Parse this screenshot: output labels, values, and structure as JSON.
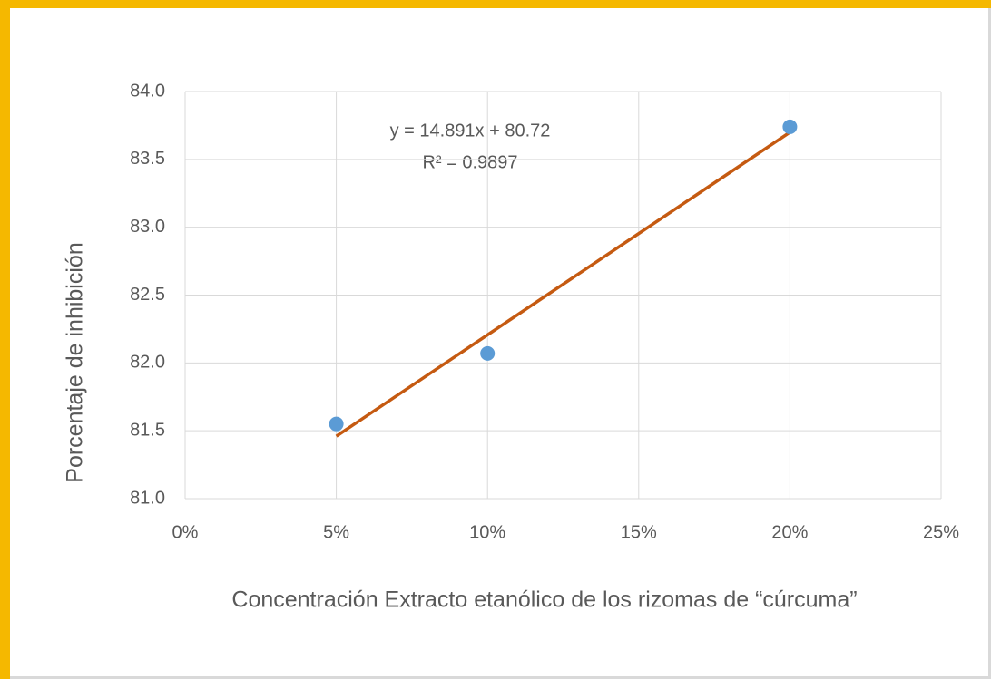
{
  "chart_data": {
    "type": "scatter",
    "x_label": "Concentración Extracto etanólico de los rizomas de “cúrcuma”",
    "y_label": "Porcentaje de inhibición",
    "x": [
      5,
      10,
      20
    ],
    "values": [
      81.55,
      82.07,
      83.74
    ],
    "color": "#5b9bd5",
    "trendline": {
      "x": [
        5,
        20
      ],
      "values": [
        81.46,
        83.7
      ],
      "color": "#c55a11"
    },
    "annotations": [
      "y = 14.891x + 80.72",
      "R² = 0.9897"
    ],
    "xlim": [
      0,
      25
    ],
    "xticks": [
      {
        "value": 0,
        "label": "0%"
      },
      {
        "value": 5,
        "label": "5%"
      },
      {
        "value": 10,
        "label": "10%"
      },
      {
        "value": 15,
        "label": "15%"
      },
      {
        "value": 20,
        "label": "20%"
      },
      {
        "value": 25,
        "label": "25%"
      }
    ],
    "ylim": [
      81,
      84
    ],
    "yticks": [
      {
        "value": 81,
        "label": "81.0"
      },
      {
        "value": 81.5,
        "label": "81.5"
      },
      {
        "value": 82,
        "label": "82.0"
      },
      {
        "value": 82.5,
        "label": "82.5"
      },
      {
        "value": 83,
        "label": "83.0"
      },
      {
        "value": 83.5,
        "label": "83.5"
      },
      {
        "value": 84,
        "label": "84.0"
      }
    ],
    "grid": true
  }
}
